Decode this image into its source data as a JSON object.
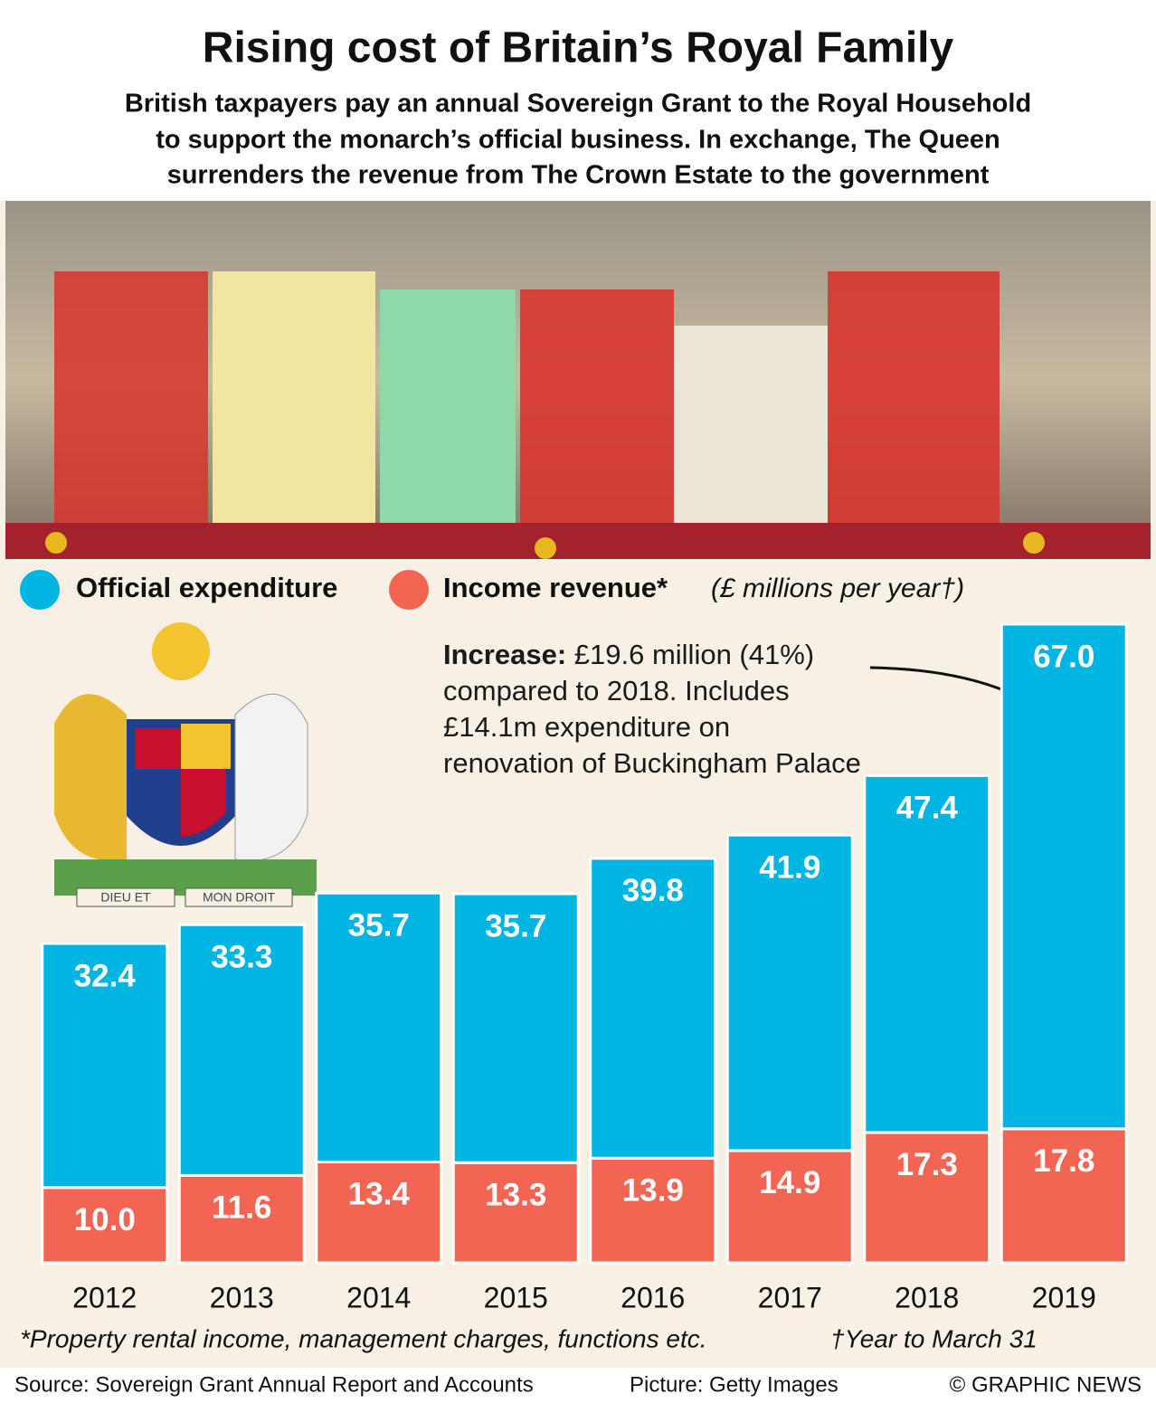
{
  "chart_data": {
    "type": "stacked_bar",
    "title": "Rising cost of Britain’s Royal Family",
    "subtitle": [
      "British taxpayers pay an annual Sovereign Grant to the Royal Household",
      "to support the monarch’s official business. In exchange, The Queen",
      "surrenders the revenue from The Crown Estate to the government"
    ],
    "units_note": "(£ millions per year†)",
    "categories": [
      "2012",
      "2013",
      "2014",
      "2015",
      "2016",
      "2017",
      "2018",
      "2019"
    ],
    "series": [
      {
        "name": "Income revenue*",
        "color": "#f26552",
        "values": [
          10.0,
          11.6,
          13.4,
          13.3,
          13.9,
          14.9,
          17.3,
          17.8
        ],
        "value_labels": [
          "10.0",
          "11.6",
          "13.4",
          "13.3",
          "13.9",
          "14.9",
          "17.3",
          "17.8"
        ]
      },
      {
        "name": "Official expenditure",
        "color": "#00b5e2",
        "values": [
          32.4,
          33.3,
          35.7,
          35.7,
          39.8,
          41.9,
          47.4,
          67.0
        ],
        "value_labels": [
          "32.4",
          "33.3",
          "35.7",
          "35.7",
          "39.8",
          "41.9",
          "47.4",
          "67.0"
        ]
      }
    ],
    "annotation": {
      "label": "Increase:",
      "text": "£19.6 million (41%) compared to 2018. Includes £14.1m expenditure on renovation of Buckingham Palace"
    },
    "coat_of_arms_motto": [
      "DIEU ET",
      "MON DROIT"
    ],
    "footnotes": [
      "*Property rental income, management charges, functions etc.",
      "†Year to March 31"
    ],
    "source": "Source: Sovereign Grant Annual Report and Accounts",
    "picture_credit": "Picture: Getty Images",
    "credit": "© GRAPHIC NEWS"
  }
}
